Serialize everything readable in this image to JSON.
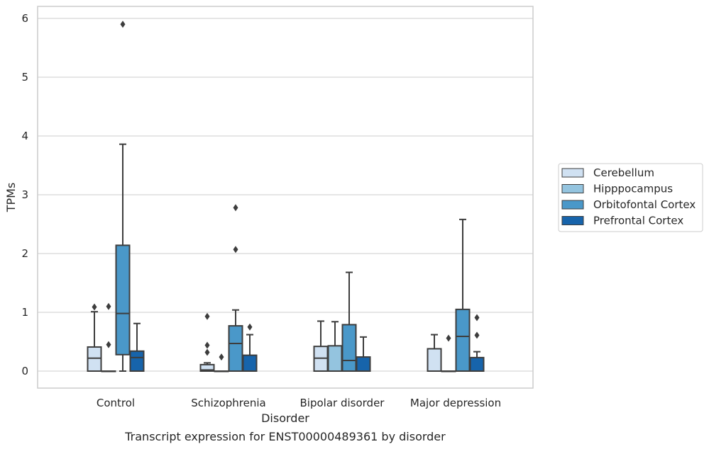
{
  "chart_data": {
    "type": "box",
    "title": "",
    "caption": "Transcript expression for ENST00000489361 by disorder",
    "xlabel": "Disorder",
    "ylabel": "TPMs",
    "ylim": [
      -0.28,
      6.2
    ],
    "yticks": [
      "0",
      "1",
      "2",
      "3",
      "4",
      "5",
      "6"
    ],
    "grid": "horizontal",
    "legend_position": "right",
    "categories": [
      "Control",
      "Schizophrenia",
      "Bipolar disorder",
      "Major depression"
    ],
    "series": [
      {
        "name": "Cerebellum",
        "color": "#d0e1f2",
        "boxes": [
          {
            "whisker_low": 0,
            "q1": 0,
            "median": 0.22,
            "q3": 0.41,
            "whisker_high": 1.01,
            "outliers": [
              1.09
            ]
          },
          {
            "whisker_low": 0,
            "q1": 0,
            "median": 0.02,
            "q3": 0.11,
            "whisker_high": 0.14,
            "outliers": [
              0.93,
              0.44,
              0.32
            ]
          },
          {
            "whisker_low": 0,
            "q1": 0,
            "median": 0.22,
            "q3": 0.42,
            "whisker_high": 0.85,
            "outliers": []
          },
          {
            "whisker_low": 0,
            "q1": 0,
            "median": 0.0,
            "q3": 0.38,
            "whisker_high": 0.62,
            "outliers": []
          }
        ]
      },
      {
        "name": "Hipppocampus",
        "color": "#94c4df",
        "boxes": [
          {
            "whisker_low": 0,
            "q1": 0,
            "median": 0,
            "q3": 0,
            "whisker_high": 0,
            "outliers": [
              1.1,
              0.45
            ]
          },
          {
            "whisker_low": 0,
            "q1": 0,
            "median": 0,
            "q3": 0,
            "whisker_high": 0,
            "outliers": [
              0.24
            ]
          },
          {
            "whisker_low": 0,
            "q1": 0,
            "median": 0.0,
            "q3": 0.43,
            "whisker_high": 0.84,
            "outliers": []
          },
          {
            "whisker_low": 0,
            "q1": 0,
            "median": 0,
            "q3": 0,
            "whisker_high": 0,
            "outliers": [
              0.56
            ]
          }
        ]
      },
      {
        "name": "Orbitofontal Cortex",
        "color": "#4a98c9",
        "boxes": [
          {
            "whisker_low": 0,
            "q1": 0.28,
            "median": 0.98,
            "q3": 2.14,
            "whisker_high": 3.86,
            "outliers": [
              5.9
            ]
          },
          {
            "whisker_low": 0,
            "q1": 0,
            "median": 0.47,
            "q3": 0.77,
            "whisker_high": 1.04,
            "outliers": [
              2.78,
              2.07
            ]
          },
          {
            "whisker_low": 0,
            "q1": 0,
            "median": 0.18,
            "q3": 0.79,
            "whisker_high": 1.68,
            "outliers": []
          },
          {
            "whisker_low": 0,
            "q1": 0,
            "median": 0.59,
            "q3": 1.05,
            "whisker_high": 2.58,
            "outliers": []
          }
        ]
      },
      {
        "name": "Prefrontal Cortex",
        "color": "#1764ab",
        "boxes": [
          {
            "whisker_low": 0,
            "q1": 0,
            "median": 0.23,
            "q3": 0.34,
            "whisker_high": 0.81,
            "outliers": []
          },
          {
            "whisker_low": 0,
            "q1": 0,
            "median": 0.0,
            "q3": 0.27,
            "whisker_high": 0.62,
            "outliers": [
              0.75
            ]
          },
          {
            "whisker_low": 0,
            "q1": 0,
            "median": 0.0,
            "q3": 0.24,
            "whisker_high": 0.58,
            "outliers": []
          },
          {
            "whisker_low": 0,
            "q1": 0,
            "median": 0.0,
            "q3": 0.23,
            "whisker_high": 0.33,
            "outliers": [
              0.91,
              0.61
            ]
          }
        ]
      }
    ]
  }
}
